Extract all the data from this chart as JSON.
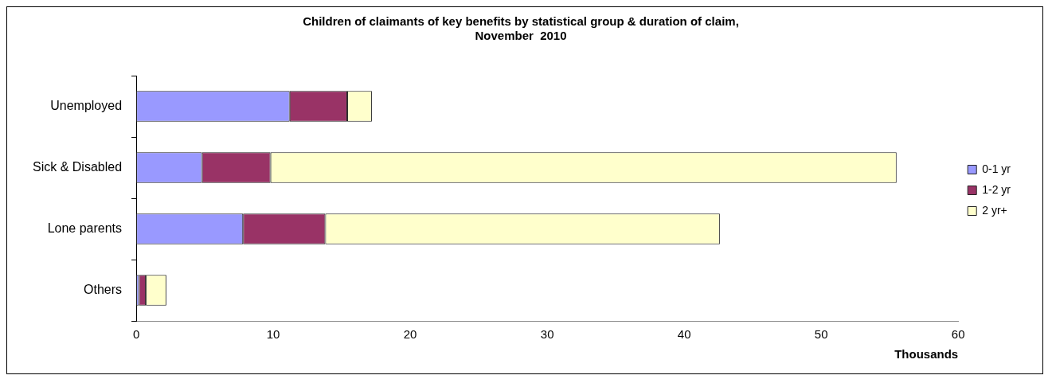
{
  "chart_data": {
    "type": "bar",
    "orientation": "horizontal",
    "stacked": true,
    "title": [
      "Children of claimants of key benefits by statistical group & duration of claim,",
      "November  2010"
    ],
    "xlabel": "Thousands",
    "categories": [
      "Unemployed",
      "Sick & Disabled",
      "Lone parents",
      "Others"
    ],
    "series": [
      {
        "name": "0-1 yr",
        "color": "#9999ff",
        "values": [
          11.2,
          4.8,
          7.8,
          0.2
        ]
      },
      {
        "name": "1-2 yr",
        "color": "#993366",
        "values": [
          4.2,
          5.0,
          6.0,
          0.5
        ]
      },
      {
        "name": "2 yr+",
        "color": "#ffffcc",
        "values": [
          1.8,
          45.7,
          28.8,
          1.5
        ]
      }
    ],
    "xlim": [
      0,
      60
    ],
    "xticks": [
      0,
      10,
      20,
      30,
      40,
      50,
      60
    ],
    "grid": false,
    "legend": "right"
  }
}
